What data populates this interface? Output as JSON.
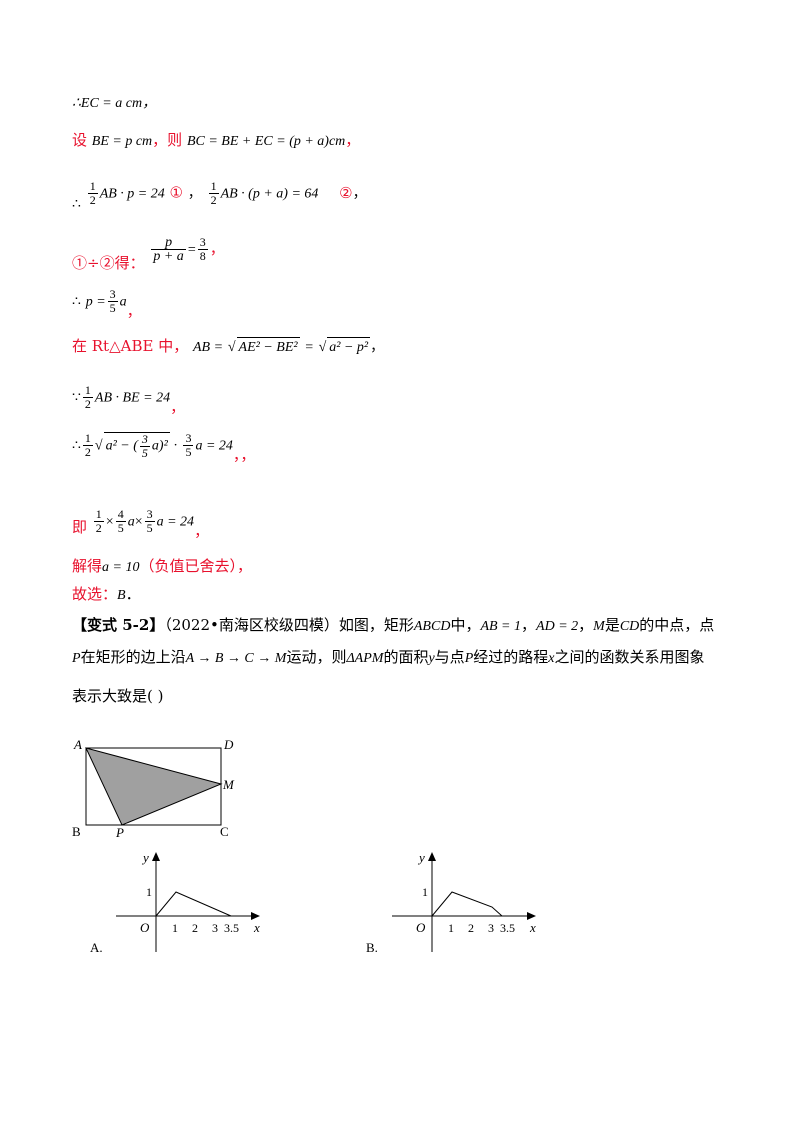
{
  "lines": {
    "l1": "∴EC = a cm，",
    "l2_pre": "设",
    "l2_math": "BE = p cm",
    "l2_mid": "，则",
    "l2_math2": "BC = BE + EC = (p + a)cm",
    "l2_end": "，",
    "l3_mark1": "①",
    "l3_mark2": "②",
    "l4_pre": "①÷②得：",
    "l7_pre": "在 Rt△ABE 中，",
    "l11_pre": "即",
    "l12_pre": "解得",
    "l12_math": "a = 10",
    "l12_note": "（负值已舍去），",
    "l13_pre": "故选：",
    "l13_ans": "B",
    "l13_end": "．"
  },
  "problem": {
    "tag": "【变式 5-2】",
    "source": "（2022•南海区校级四模）",
    "text1": "如图，矩形",
    "abcd": "ABCD",
    "text2": "中，",
    "ab": "AB = 1",
    "ad": "AD = 2",
    "m": "M",
    "text3": "是",
    "cd": "CD",
    "text4": "的中点，点",
    "p": "P",
    "text5": "在矩形的边上沿",
    "path": "A → B → C → M",
    "text6": "运动，则",
    "tri": "ΔAPM",
    "text7": "的面积",
    "y": "y",
    "text8": "与点",
    "text9": "经过的路程",
    "x": "x",
    "text10": "之间的函数关系用图象",
    "text11": "表示大致是",
    "paren": "(        )"
  },
  "figure": {
    "labels": {
      "A": "A",
      "B": "B",
      "C": "C",
      "D": "D",
      "M": "M",
      "P": "P"
    },
    "fill": "#a0a0a0"
  },
  "options": [
    {
      "label": "A.",
      "ticks": [
        "1",
        "2",
        "3",
        "3.5"
      ],
      "ytick": "1",
      "origin": "O",
      "xaxis": "x",
      "yaxis": "y"
    },
    {
      "label": "B.",
      "ticks": [
        "1",
        "2",
        "3",
        "3.5"
      ],
      "ytick": "1",
      "origin": "O",
      "xaxis": "x",
      "yaxis": "y"
    }
  ]
}
